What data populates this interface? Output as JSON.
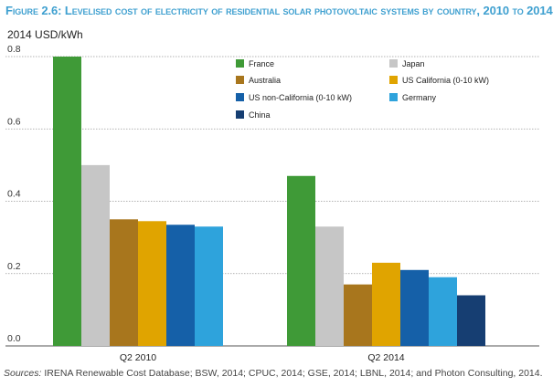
{
  "figure": {
    "title": "Figure 2.6: Levelised cost of electricity of residential solar photovoltaic systems by country, 2010 to 2014",
    "source_prefix": "Sources:",
    "source_text": " IRENA Renewable Cost Database; BSW, 2014; CPUC, 2014; GSE, 2014; LBNL, 2014; and Photon Consulting, 2014."
  },
  "chart_data": {
    "type": "bar",
    "title": "Levelised cost of electricity of residential solar photovoltaic systems by country, 2010 to 2014",
    "ylabel": "2014 USD/kWh",
    "xlabel": "",
    "ylim": [
      0,
      0.8
    ],
    "yticks": [
      "0.0",
      "0.2",
      "0.4",
      "0.6",
      "0.8"
    ],
    "ytick_values": [
      0,
      0.2,
      0.4,
      0.6,
      0.8
    ],
    "grid": true,
    "legend_position": "top-right",
    "categories": [
      "Q2 2010",
      "Q2 2014"
    ],
    "series": [
      {
        "name": "France",
        "color": "#3f9a37",
        "values": [
          0.8,
          0.47
        ]
      },
      {
        "name": "Japan",
        "color": "#c6c6c6",
        "values": [
          0.5,
          0.33
        ]
      },
      {
        "name": "Australia",
        "color": "#a8761d",
        "values": [
          0.35,
          0.17
        ]
      },
      {
        "name": "US California (0-10 kW)",
        "color": "#e0a400",
        "values": [
          0.345,
          0.23
        ]
      },
      {
        "name": "US non-California (0-10 kW)",
        "color": "#1560a8",
        "values": [
          0.335,
          0.21
        ]
      },
      {
        "name": "Germany",
        "color": "#2ea3dc",
        "values": [
          0.33,
          0.19
        ]
      },
      {
        "name": "China",
        "color": "#163e72",
        "values": [
          null,
          0.14
        ]
      }
    ],
    "legend_order": [
      [
        "France",
        "Japan"
      ],
      [
        "Australia",
        "US California (0-10 kW)"
      ],
      [
        "US non-California (0-10 kW)",
        "Germany"
      ],
      [
        "China",
        null
      ]
    ]
  }
}
